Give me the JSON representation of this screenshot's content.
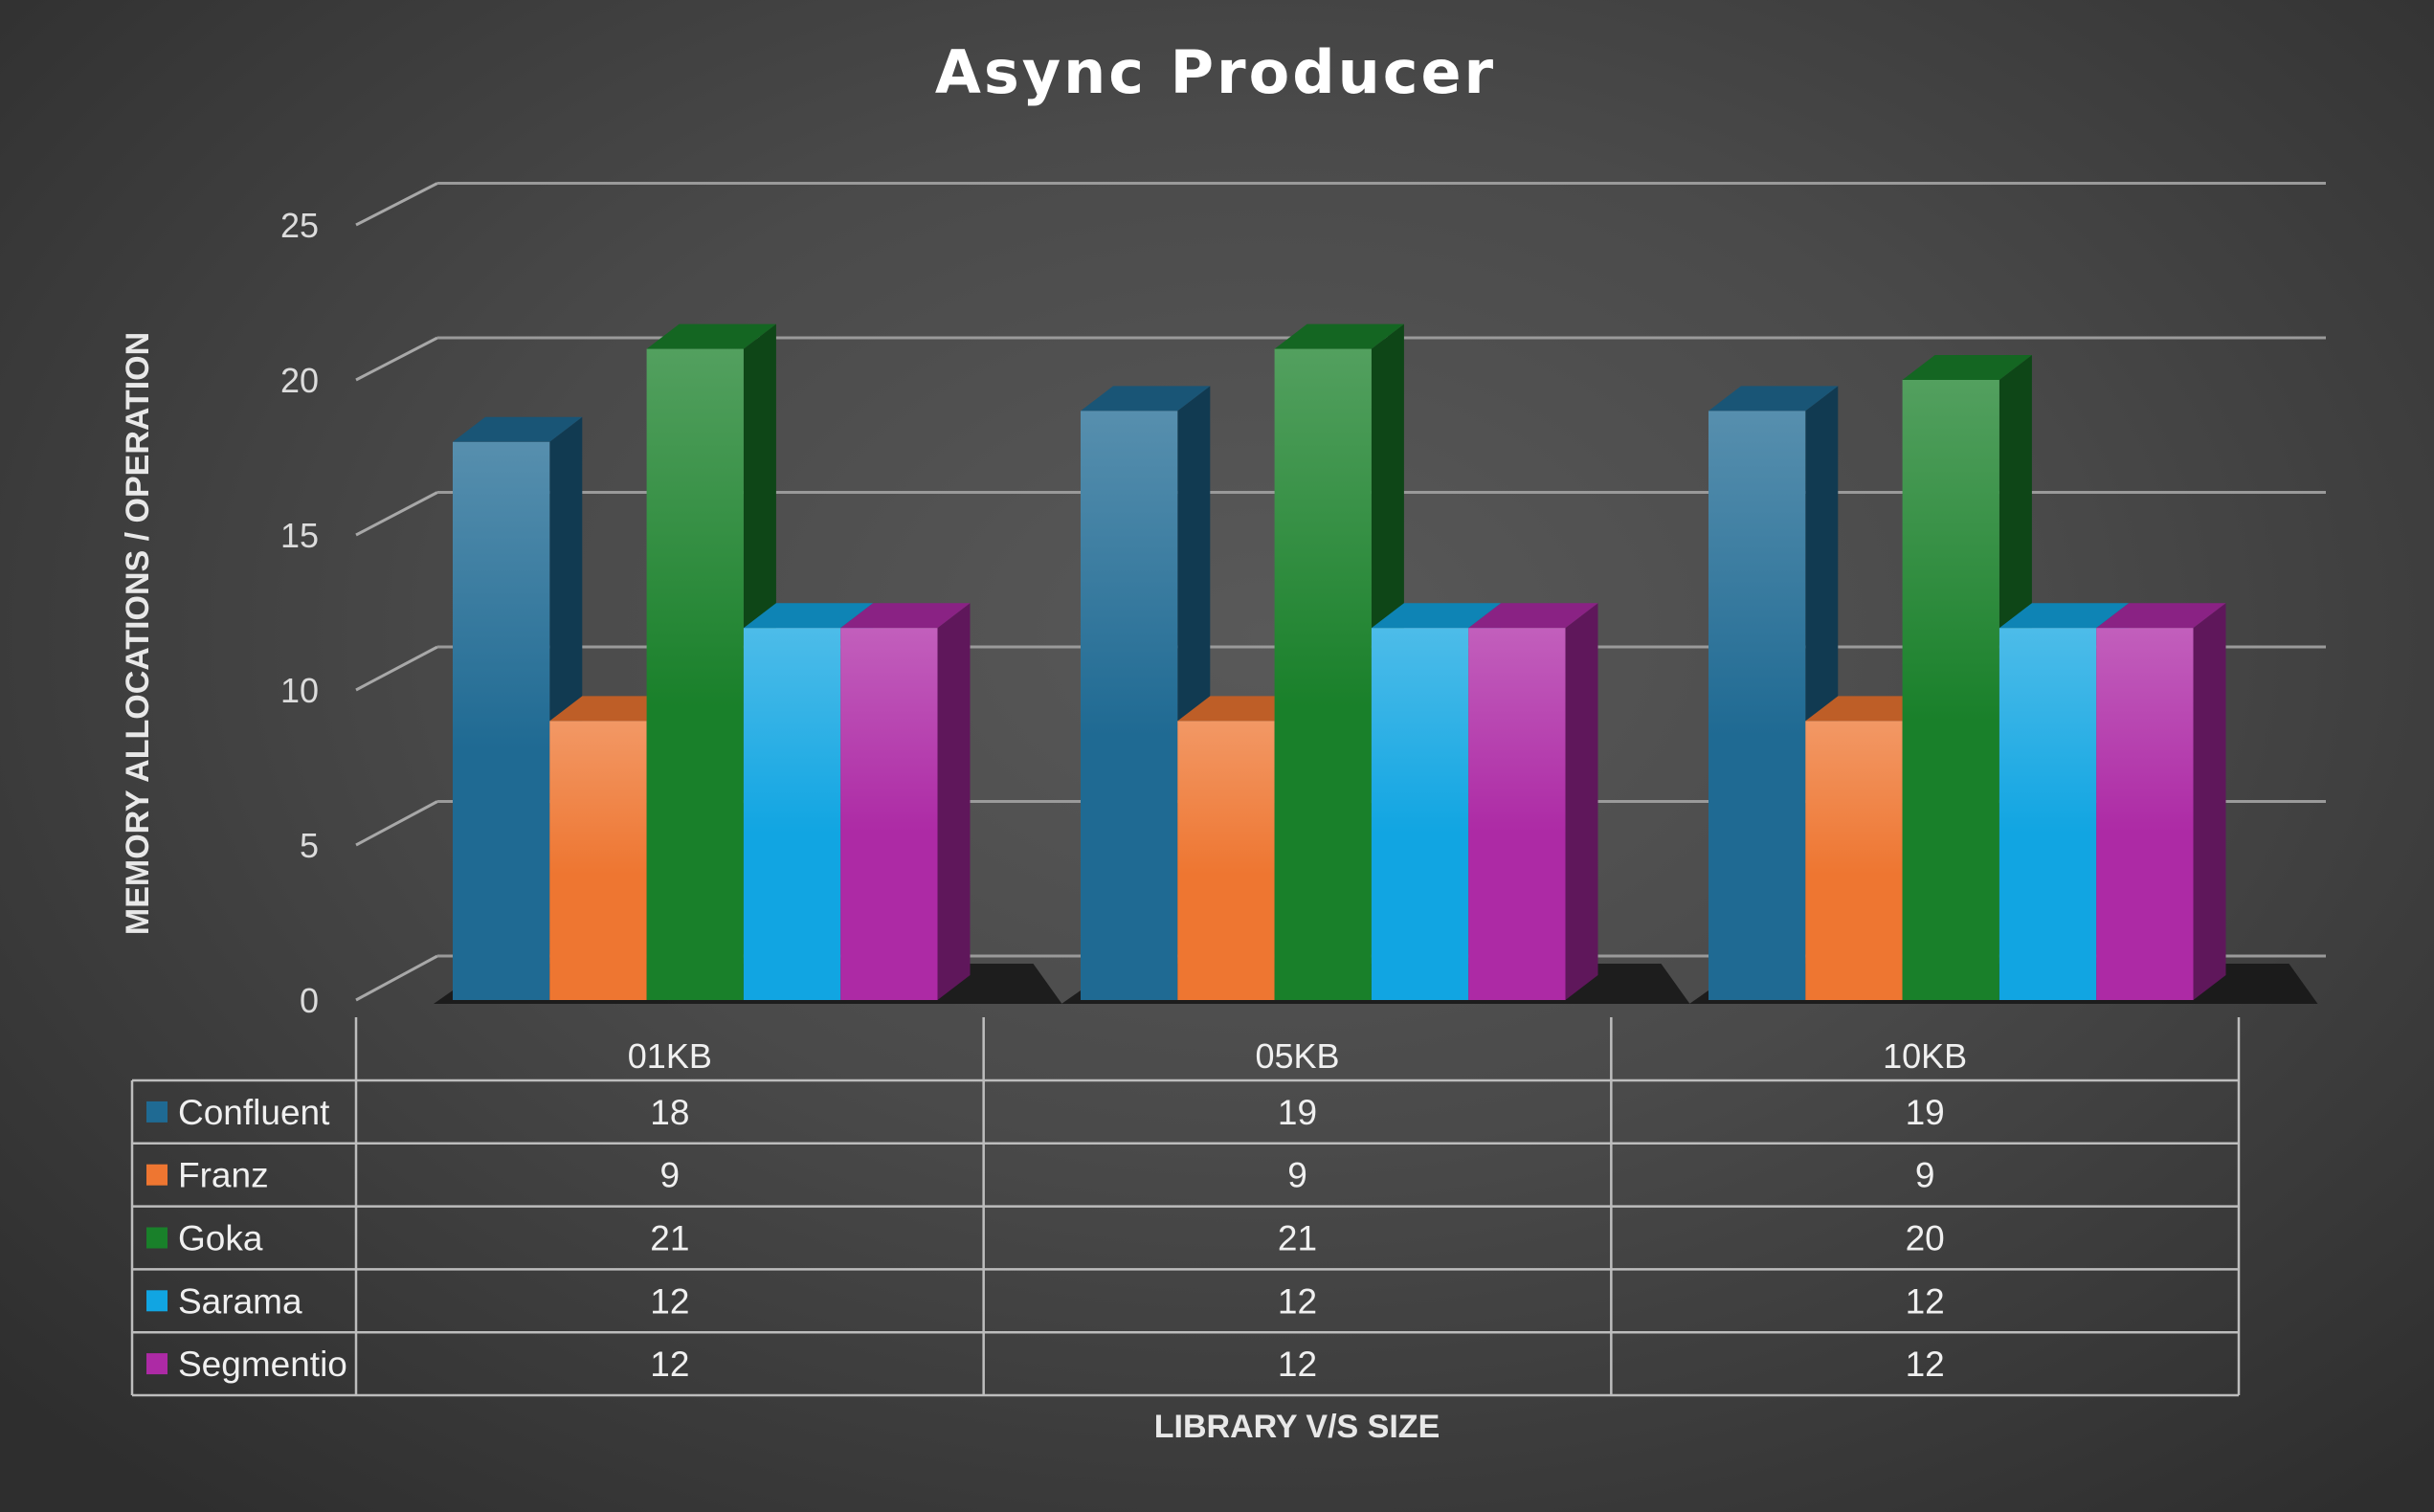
{
  "chart_data": {
    "type": "bar",
    "title": "Async Producer",
    "xlabel": "LIBRARY V/S SIZE",
    "ylabel": "MEMORY ALLOCATIONS / OPERATION",
    "ylim": [
      0,
      25
    ],
    "yticks": [
      0,
      5,
      10,
      15,
      20,
      25
    ],
    "grid": true,
    "data_table": true,
    "categories": [
      "01KB",
      "05KB",
      "10KB"
    ],
    "series": [
      {
        "name": "Confluent",
        "values": [
          18,
          19,
          19
        ],
        "color": "#1f6a93"
      },
      {
        "name": "Franz",
        "values": [
          9,
          9,
          9
        ],
        "color": "#ee7631"
      },
      {
        "name": "Goka",
        "values": [
          21,
          21,
          20
        ],
        "color": "#19802a"
      },
      {
        "name": "Sarama",
        "values": [
          12,
          12,
          12
        ],
        "color": "#11a5e2"
      },
      {
        "name": "Segmentio",
        "values": [
          12,
          12,
          12
        ],
        "color": "#ad2aa5"
      }
    ]
  }
}
